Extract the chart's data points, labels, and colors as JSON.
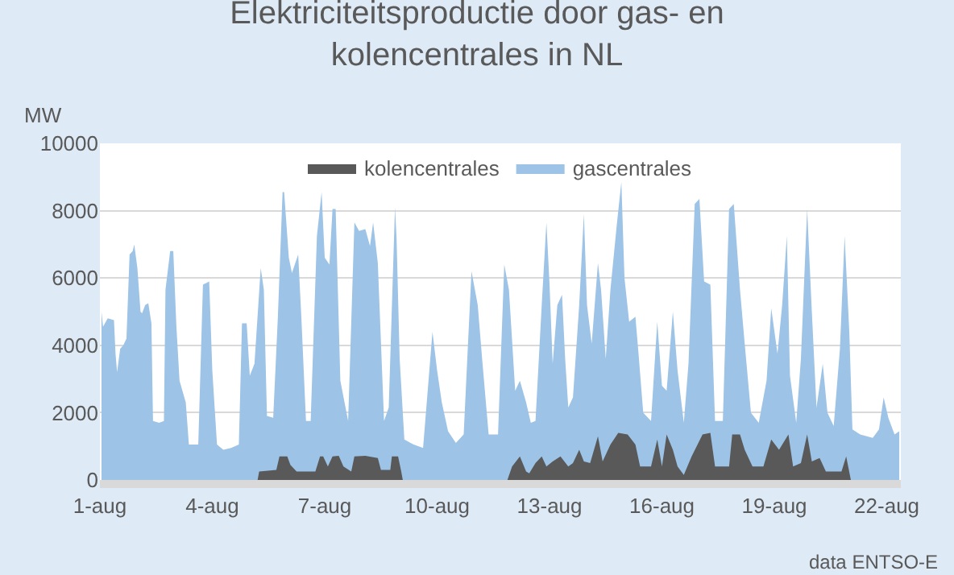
{
  "chart_data": {
    "type": "area",
    "title": "Elektriciteitsproductie door gas- en\nkolencentrales in NL",
    "ylabel": "MW",
    "xlim": [
      "--08-01T00:00",
      "--08-22T09:00"
    ],
    "ylim": [
      0,
      10000
    ],
    "yticks": [
      0,
      2000,
      4000,
      6000,
      8000,
      10000
    ],
    "xticks": [
      {
        "value": "--08-01",
        "label": "1-aug"
      },
      {
        "value": "--08-04",
        "label": "4-aug"
      },
      {
        "value": "--08-07",
        "label": "7-aug"
      },
      {
        "value": "--08-10",
        "label": "10-aug"
      },
      {
        "value": "--08-13",
        "label": "13-aug"
      },
      {
        "value": "--08-16",
        "label": "16-aug"
      },
      {
        "value": "--08-19",
        "label": "19-aug"
      },
      {
        "value": "--08-22",
        "label": "22-aug"
      }
    ],
    "grid": "y",
    "legend": "top",
    "annotations": [
      "data ENTSO-E"
    ],
    "series": [
      {
        "name": "kolencentrales",
        "color": "#595959",
        "x": [
          "--08-05T05:00",
          "--08-05T06:00",
          "--08-05T17:00",
          "--08-05T19:00",
          "--08-06T00:00",
          "--08-06T02:00",
          "--08-06T06:00",
          "--08-06T18:00",
          "--08-06T21:00",
          "--08-06T23:00",
          "--08-07T02:00",
          "--08-07T05:00",
          "--08-07T09:00",
          "--08-07T12:00",
          "--08-07T17:00",
          "--08-07T19:00",
          "--08-08T02:00",
          "--08-08T10:00",
          "--08-08T12:00",
          "--08-08T18:00",
          "--08-08T19:00",
          "--08-08T23:00",
          "--08-09T01:00",
          "--08-09T02:00",
          "--08-11T21:00",
          "--08-12T00:00",
          "--08-12T05:00",
          "--08-12T09:00",
          "--08-12T11:00",
          "--08-12T15:00",
          "--08-12T19:00",
          "--08-12T22:00",
          "--08-13T02:00",
          "--08-13T07:00",
          "--08-13T12:00",
          "--08-13T15:00",
          "--08-13T19:00",
          "--08-13T22:00",
          "--08-14T02:00",
          "--08-14T07:00",
          "--08-14T10:00",
          "--08-14T15:00",
          "--08-14T20:00",
          "--08-15T02:00",
          "--08-15T07:00",
          "--08-15T10:00",
          "--08-15T17:00",
          "--08-15T21:00",
          "--08-16T00:00",
          "--08-16T03:00",
          "--08-16T07:00",
          "--08-16T10:00",
          "--08-16T14:00",
          "--08-16T19:00",
          "--08-17T02:00",
          "--08-17T07:00",
          "--08-17T10:00",
          "--08-17T19:00",
          "--08-17T21:00",
          "--08-18T02:00",
          "--08-18T05:00",
          "--08-18T10:00",
          "--08-18T17:00",
          "--08-18T22:00",
          "--08-19T03:00",
          "--08-19T09:00",
          "--08-19T12:00",
          "--08-19T17:00",
          "--08-19T21:00",
          "--08-20T00:00",
          "--08-20T05:00",
          "--08-20T09:00",
          "--08-20T19:00",
          "--08-20T22:00",
          "--08-21T01:00"
        ],
        "values": [
          0,
          250,
          300,
          700,
          700,
          450,
          250,
          250,
          700,
          700,
          400,
          700,
          720,
          400,
          250,
          700,
          720,
          650,
          300,
          300,
          700,
          700,
          250,
          0,
          0,
          400,
          700,
          250,
          200,
          500,
          700,
          400,
          550,
          700,
          400,
          500,
          900,
          550,
          500,
          1300,
          550,
          1050,
          1400,
          1350,
          1050,
          400,
          400,
          1200,
          400,
          1350,
          900,
          400,
          150,
          700,
          1350,
          1400,
          400,
          400,
          1350,
          1350,
          900,
          400,
          400,
          1200,
          900,
          1350,
          400,
          500,
          1350,
          550,
          650,
          250,
          250,
          700,
          0
        ]
      },
      {
        "name": "gascentrales",
        "color": "#9dc3e6",
        "x": [
          "--08-01T01:00",
          "--08-01T02:00",
          "--08-01T05:00",
          "--08-01T09:00",
          "--08-01T10:00",
          "--08-01T11:00",
          "--08-01T13:00",
          "--08-01T15:00",
          "--08-01T17:00",
          "--08-01T19:00",
          "--08-01T21:00",
          "--08-01T22:00",
          "--08-02T00:00",
          "--08-02T02:00",
          "--08-02T03:00",
          "--08-02T05:00",
          "--08-02T07:00",
          "--08-02T09:00",
          "--08-02T10:00",
          "--08-02T14:00",
          "--08-02T17:00",
          "--08-02T18:00",
          "--08-02T21:00",
          "--08-02T23:00",
          "--08-03T01:00",
          "--08-03T03:00",
          "--08-03T07:00",
          "--08-03T09:00",
          "--08-03T15:00",
          "--08-03T18:00",
          "--08-03T22:00",
          "--08-04T00:00",
          "--08-04T03:00",
          "--08-04T07:00",
          "--08-04T12:00",
          "--08-04T17:00",
          "--08-04T19:00",
          "--08-04T22:00",
          "--08-05T00:00",
          "--08-05T03:00",
          "--08-05T07:00",
          "--08-05T09:00",
          "--08-05T11:00",
          "--08-05T15:00",
          "--08-05T18:00",
          "--08-05T21:00",
          "--08-05T22:00",
          "--08-06T01:00",
          "--08-06T03:00",
          "--08-06T07:00",
          "--08-06T09:00",
          "--08-06T12:00",
          "--08-06T15:00",
          "--08-06T19:00",
          "--08-06T22:00",
          "--08-07T00:00",
          "--08-07T03:00",
          "--08-07T05:00",
          "--08-07T07:00",
          "--08-07T10:00",
          "--08-07T15:00",
          "--08-07T19:00",
          "--08-07T22:00",
          "--08-08T02:00",
          "--08-08T05:00",
          "--08-08T07:00",
          "--08-08T10:00",
          "--08-08T14:00",
          "--08-08T17:00",
          "--08-08T21:00",
          "--08-08T22:00",
          "--08-09T00:00",
          "--08-09T03:00",
          "--08-09T09:00",
          "--08-09T15:00",
          "--08-09T21:00",
          "--08-10T00:00",
          "--08-10T03:00",
          "--08-10T07:00",
          "--08-10T12:00",
          "--08-10T17:00",
          "--08-10T22:00",
          "--08-11T02:00",
          "--08-11T05:00",
          "--08-11T09:00",
          "--08-11T15:00",
          "--08-11T19:00",
          "--08-11T22:00",
          "--08-12T02:00",
          "--08-12T05:00",
          "--08-12T09:00",
          "--08-12T12:00",
          "--08-12T15:00",
          "--08-12T19:00",
          "--08-12T22:00",
          "--08-13T00:00",
          "--08-13T02:00",
          "--08-13T05:00",
          "--08-13T08:00",
          "--08-13T10:00",
          "--08-13T12:00",
          "--08-13T15:00",
          "--08-13T19:00",
          "--08-13T22:00",
          "--08-14T00:00",
          "--08-14T03:00",
          "--08-14T07:00",
          "--08-14T09:00",
          "--08-14T12:00",
          "--08-14T15:00",
          "--08-14T19:00",
          "--08-14T22:00",
          "--08-15T00:00",
          "--08-15T03:00",
          "--08-15T07:00",
          "--08-15T09:00",
          "--08-15T12:00",
          "--08-15T17:00",
          "--08-15T21:00",
          "--08-16T00:00",
          "--08-16T03:00",
          "--08-16T07:00",
          "--08-16T10:00",
          "--08-16T14:00",
          "--08-16T17:00",
          "--08-16T21:00",
          "--08-17T00:00",
          "--08-17T03:00",
          "--08-17T07:00",
          "--08-17T10:00",
          "--08-17T15:00",
          "--08-17T19:00",
          "--08-17T22:00",
          "--08-18T02:00",
          "--08-18T05:00",
          "--08-18T09:00",
          "--08-18T14:00",
          "--08-18T19:00",
          "--08-18T22:00",
          "--08-19T02:00",
          "--08-19T05:00",
          "--08-19T08:00",
          "--08-19T10:00",
          "--08-19T14:00",
          "--08-19T17:00",
          "--08-19T21:00",
          "--08-20T00:00",
          "--08-20T03:00",
          "--08-20T07:00",
          "--08-20T10:00",
          "--08-20T14:00",
          "--08-20T18:00",
          "--08-20T21:00",
          "--08-21T00:00",
          "--08-21T02:00",
          "--08-21T07:00",
          "--08-21T15:00",
          "--08-21T19:00",
          "--08-21T22:00",
          "--08-22T01:00",
          "--08-22T05:00",
          "--08-22T08:00"
        ],
        "values": [
          5000,
          4550,
          4800,
          4750,
          3750,
          3200,
          3900,
          4000,
          4200,
          6700,
          6800,
          7000,
          6300,
          5000,
          4950,
          5200,
          5250,
          4650,
          1750,
          1700,
          1750,
          5650,
          6800,
          6800,
          4550,
          2950,
          2300,
          1050,
          1050,
          5800,
          5900,
          3250,
          1050,
          900,
          950,
          1050,
          4650,
          4650,
          3100,
          3450,
          6300,
          5650,
          1900,
          1850,
          4850,
          8550,
          8550,
          6600,
          6150,
          6700,
          4850,
          1750,
          1750,
          7250,
          8550,
          6600,
          6400,
          8050,
          8050,
          2950,
          1750,
          7650,
          7400,
          7450,
          6950,
          7650,
          6450,
          1750,
          2150,
          8100,
          7200,
          3600,
          1200,
          1050,
          950,
          4400,
          3250,
          2300,
          1450,
          1100,
          1350,
          6200,
          5200,
          3500,
          1350,
          1350,
          6400,
          5650,
          2650,
          2950,
          2300,
          1700,
          1750,
          5200,
          7650,
          5800,
          3450,
          5200,
          5500,
          3600,
          2150,
          2450,
          5200,
          7900,
          5200,
          4050,
          6450,
          5650,
          3600,
          5650,
          7550,
          8850,
          6000,
          4700,
          4850,
          3750,
          2000,
          1750,
          4700,
          2800,
          2650,
          5000,
          3250,
          1700,
          3450,
          8200,
          8350,
          5900,
          5800,
          1750,
          1750,
          8050,
          8200,
          5650,
          4050,
          2000,
          1700,
          2950,
          5100,
          3750,
          5200,
          7250,
          3100,
          1700,
          3600,
          8050,
          5000,
          2150,
          3450,
          2000,
          1600,
          3900,
          7250,
          4400,
          1500,
          1350,
          1250,
          1500,
          2450,
          1850,
          1350,
          1450
        ]
      }
    ]
  }
}
